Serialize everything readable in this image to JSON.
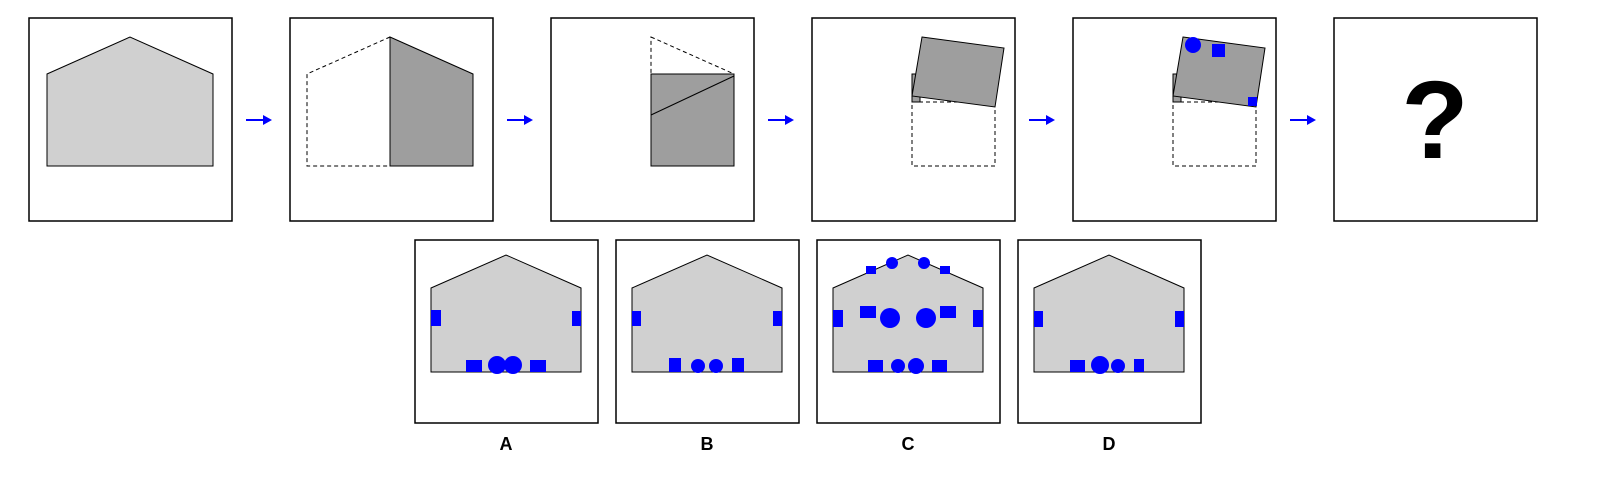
{
  "puzzle": {
    "question_mark": "?",
    "options": [
      {
        "label": "A"
      },
      {
        "label": "B"
      },
      {
        "label": "C"
      },
      {
        "label": "D"
      }
    ]
  },
  "colors": {
    "paper": "#d0d0d0",
    "folded": "#9e9e9e",
    "holes": "#0000ff",
    "arrow": "#0000ff"
  }
}
